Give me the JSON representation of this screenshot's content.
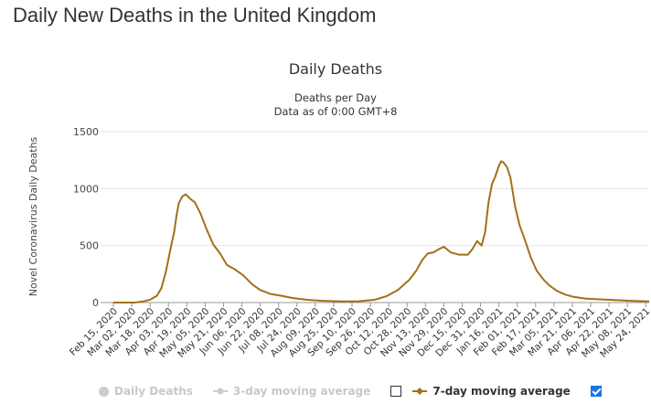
{
  "page": {
    "heading": "Daily New Deaths in the United Kingdom"
  },
  "chart_data": {
    "type": "line",
    "title": "Daily Deaths",
    "subtitle_1": "Deaths per Day",
    "subtitle_2": "Data as of 0:00 GMT+8",
    "xlabel": "",
    "ylabel": "Novel Coronavirus Daily Deaths",
    "ylim": [
      0,
      1500
    ],
    "yticks": [
      0,
      500,
      1000,
      1500
    ],
    "grid": true,
    "x_start": "2020-02-15",
    "x_end": "2021-05-27",
    "xtick_labels": [
      "Feb 15, 2020",
      "Mar 02, 2020",
      "Mar 18, 2020",
      "Apr 03, 2020",
      "Apr 19, 2020",
      "May 05, 2020",
      "May 21, 2020",
      "Jun 06, 2020",
      "Jun 22, 2020",
      "Jul 08, 2020",
      "Jul 24, 2020",
      "Aug 09, 2020",
      "Aug 25, 2020",
      "Sep 10, 2020",
      "Sep 26, 2020",
      "Oct 12, 2020",
      "Oct 28, 2020",
      "Nov 13, 2020",
      "Nov 29, 2020",
      "Dec 15, 2020",
      "Dec 31, 2020",
      "Jan 16, 2021",
      "Feb 01, 2021",
      "Feb 17, 2021",
      "Mar 05, 2021",
      "Mar 21, 2021",
      "Apr 06, 2021",
      "Apr 22, 2021",
      "May 08, 2021",
      "May 24, 2021"
    ],
    "series": [
      {
        "name": "7-day moving average",
        "color": "#a0711a",
        "x": [
          "2020-02-15",
          "2020-03-05",
          "2020-03-12",
          "2020-03-18",
          "2020-03-24",
          "2020-03-28",
          "2020-04-01",
          "2020-04-05",
          "2020-04-08",
          "2020-04-10",
          "2020-04-12",
          "2020-04-15",
          "2020-04-18",
          "2020-04-22",
          "2020-04-26",
          "2020-05-01",
          "2020-05-06",
          "2020-05-12",
          "2020-05-18",
          "2020-05-24",
          "2020-05-31",
          "2020-06-07",
          "2020-06-15",
          "2020-06-22",
          "2020-07-01",
          "2020-07-10",
          "2020-07-20",
          "2020-08-01",
          "2020-08-15",
          "2020-09-01",
          "2020-09-15",
          "2020-09-30",
          "2020-10-10",
          "2020-10-20",
          "2020-10-30",
          "2020-11-05",
          "2020-11-10",
          "2020-11-15",
          "2020-11-20",
          "2020-11-25",
          "2020-11-29",
          "2020-12-05",
          "2020-12-12",
          "2020-12-20",
          "2020-12-24",
          "2020-12-28",
          "2021-01-01",
          "2021-01-04",
          "2021-01-07",
          "2021-01-10",
          "2021-01-13",
          "2021-01-16",
          "2021-01-18",
          "2021-01-20",
          "2021-01-23",
          "2021-01-26",
          "2021-01-30",
          "2021-02-03",
          "2021-02-08",
          "2021-02-13",
          "2021-02-18",
          "2021-02-24",
          "2021-03-01",
          "2021-03-08",
          "2021-03-15",
          "2021-03-22",
          "2021-04-01",
          "2021-04-10",
          "2021-04-20",
          "2021-05-01",
          "2021-05-10",
          "2021-05-20",
          "2021-05-27"
        ],
        "values": [
          0,
          0,
          10,
          25,
          60,
          130,
          280,
          480,
          620,
          760,
          870,
          930,
          950,
          910,
          880,
          780,
          650,
          510,
          430,
          330,
          290,
          240,
          160,
          110,
          75,
          60,
          40,
          25,
          15,
          10,
          10,
          25,
          55,
          110,
          200,
          280,
          370,
          430,
          440,
          470,
          490,
          440,
          420,
          420,
          470,
          540,
          500,
          620,
          880,
          1040,
          1110,
          1200,
          1240,
          1230,
          1190,
          1100,
          850,
          680,
          540,
          390,
          280,
          200,
          150,
          100,
          70,
          50,
          35,
          30,
          25,
          20,
          15,
          12,
          10
        ]
      }
    ]
  },
  "legend": {
    "items": [
      {
        "label": "Daily Deaths",
        "state": "hidden"
      },
      {
        "label": "3-day moving average",
        "state": "hidden"
      },
      {
        "label": "7-day moving average",
        "state": "visible"
      }
    ]
  }
}
